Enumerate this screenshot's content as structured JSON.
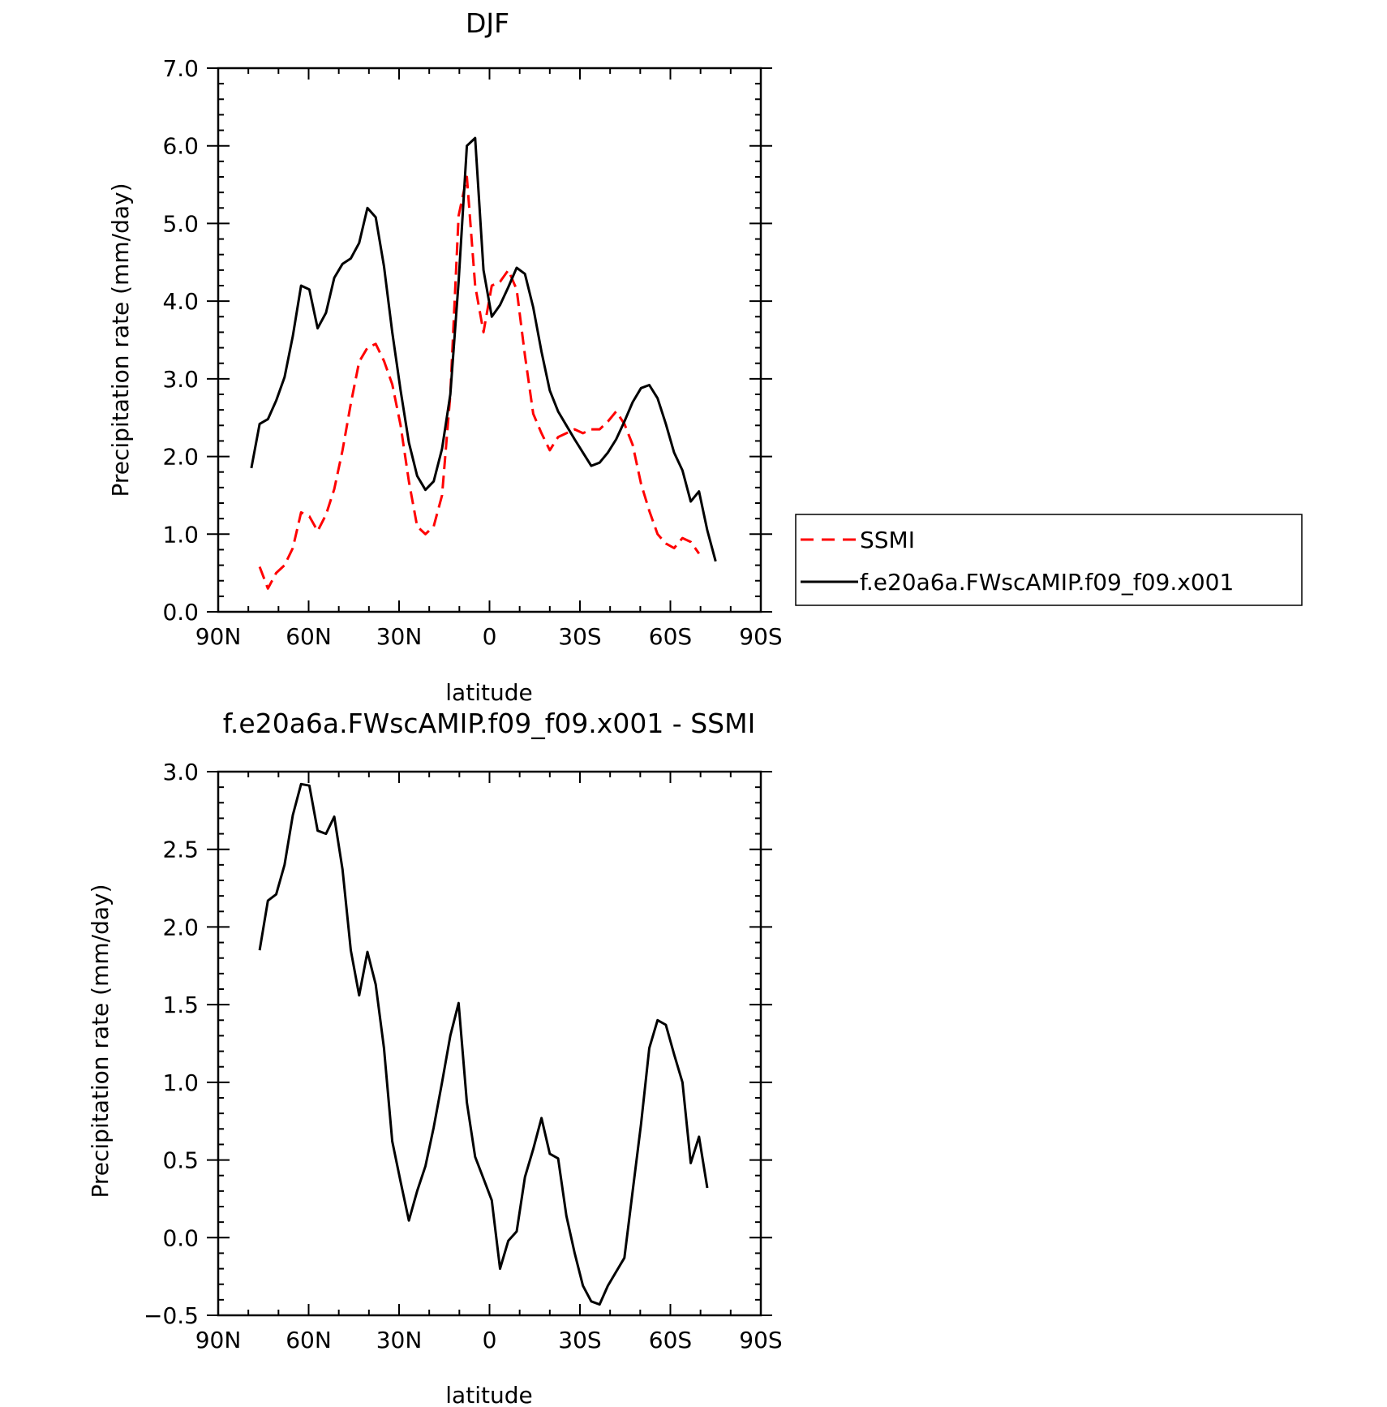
{
  "chart_data": [
    {
      "type": "line",
      "title": "DJF",
      "xlabel": "latitude",
      "ylabel": "Precipitation rate (mm/day)",
      "xlim": [
        90,
        -90
      ],
      "ylim": [
        0.0,
        7.0
      ],
      "xticks": [
        90,
        60,
        30,
        0,
        -30,
        -60,
        -90
      ],
      "xtick_labels": [
        "90N",
        "60N",
        "30N",
        "0",
        "30S",
        "60S",
        "90S"
      ],
      "yticks": [
        0,
        1,
        2,
        3,
        4,
        5,
        6,
        7
      ],
      "ytick_labels": [
        "0.0",
        "1.0",
        "2.0",
        "3.0",
        "4.0",
        "5.0",
        "6.0",
        "7.0"
      ],
      "grid": false,
      "legend": "right",
      "series": [
        {
          "name": "SSMI",
          "color": "#ff0000",
          "dash": "dashed",
          "x": [
            76.25,
            73.5,
            70.75,
            68.0,
            65.25,
            62.5,
            59.75,
            57.0,
            54.25,
            51.5,
            48.75,
            46.0,
            43.25,
            40.5,
            37.75,
            35.0,
            32.25,
            29.5,
            26.75,
            24.0,
            21.25,
            18.5,
            15.75,
            13.0,
            10.25,
            7.5,
            4.75,
            2.0,
            -0.75,
            -3.5,
            -6.25,
            -9.0,
            -11.75,
            -14.5,
            -17.25,
            -20.0,
            -22.75,
            -25.5,
            -28.25,
            -31.0,
            -33.75,
            -36.5,
            -39.25,
            -42.0,
            -44.75,
            -47.5,
            -50.25,
            -53.0,
            -55.75,
            -58.5,
            -61.25,
            -64.0,
            -66.75,
            -69.5,
            -72.25,
            -75.0
          ],
          "y": [
            0.58,
            0.3,
            0.5,
            0.6,
            0.82,
            1.28,
            1.23,
            1.04,
            1.25,
            1.58,
            2.08,
            2.68,
            3.22,
            3.4,
            3.45,
            3.23,
            2.93,
            2.4,
            1.68,
            1.1,
            1.0,
            1.1,
            1.5,
            2.8,
            5.1,
            5.6,
            4.2,
            3.6,
            4.2,
            4.25,
            4.4,
            4.15,
            3.3,
            2.55,
            2.3,
            2.08,
            2.25,
            2.3,
            2.35,
            2.3,
            2.35,
            2.35,
            2.45,
            2.58,
            2.42,
            2.15,
            1.65,
            1.3,
            1.0,
            0.88,
            0.82,
            0.95,
            0.9,
            0.75,
            null,
            null
          ]
        },
        {
          "name": "f.e20a6a.FWscAMIP.f09_f09.x001",
          "color": "#000000",
          "dash": "solid",
          "x": [
            79.0,
            76.25,
            73.5,
            70.75,
            68.0,
            65.25,
            62.5,
            59.75,
            57.0,
            54.25,
            51.5,
            48.75,
            46.0,
            43.25,
            40.5,
            37.75,
            35.0,
            32.25,
            29.5,
            26.75,
            24.0,
            21.25,
            18.5,
            15.75,
            13.0,
            10.25,
            7.5,
            4.75,
            2.0,
            -0.75,
            -3.5,
            -6.25,
            -9.0,
            -11.75,
            -14.5,
            -17.25,
            -20.0,
            -22.75,
            -25.5,
            -28.25,
            -31.0,
            -33.75,
            -36.5,
            -39.25,
            -42.0,
            -44.75,
            -47.5,
            -50.25,
            -53.0,
            -55.75,
            -58.5,
            -61.25,
            -64.0,
            -66.75,
            -69.5,
            -72.25,
            -75.0,
            -77.75
          ],
          "y": [
            1.85,
            2.42,
            2.48,
            2.72,
            3.02,
            3.55,
            4.2,
            4.15,
            3.65,
            3.85,
            4.3,
            4.48,
            4.55,
            4.75,
            5.2,
            5.08,
            4.45,
            3.6,
            2.85,
            2.18,
            1.75,
            1.57,
            1.68,
            2.1,
            2.8,
            4.25,
            6.0,
            6.1,
            4.4,
            3.8,
            3.95,
            4.18,
            4.43,
            4.35,
            3.92,
            3.35,
            2.85,
            2.58,
            2.4,
            2.22,
            2.05,
            1.88,
            1.92,
            2.05,
            2.22,
            2.45,
            2.7,
            2.88,
            2.92,
            2.75,
            2.42,
            2.05,
            1.82,
            1.42,
            1.55,
            1.05,
            0.65,
            null
          ]
        }
      ]
    },
    {
      "type": "line",
      "title": "f.e20a6a.FWscAMIP.f09_f09.x001 - SSMI",
      "xlabel": "latitude",
      "ylabel": "Precipitation rate (mm/day)",
      "xlim": [
        90,
        -90
      ],
      "ylim": [
        -0.5,
        3.0
      ],
      "xticks": [
        90,
        60,
        30,
        0,
        -30,
        -60,
        -90
      ],
      "xtick_labels": [
        "90N",
        "60N",
        "30N",
        "0",
        "30S",
        "60S",
        "90S"
      ],
      "yticks": [
        -0.5,
        0.0,
        0.5,
        1.0,
        1.5,
        2.0,
        2.5,
        3.0
      ],
      "ytick_labels": [
        "−0.5",
        "0.0",
        "0.5",
        "1.0",
        "1.5",
        "2.0",
        "2.5",
        "3.0"
      ],
      "grid": false,
      "series": [
        {
          "color": "#000000",
          "dash": "solid",
          "x": [
            76.25,
            73.5,
            70.75,
            68.0,
            65.25,
            62.5,
            59.75,
            57.0,
            54.25,
            51.5,
            48.75,
            46.0,
            43.25,
            40.5,
            37.75,
            35.0,
            32.25,
            29.5,
            26.75,
            24.0,
            21.25,
            18.5,
            15.75,
            13.0,
            10.25,
            7.5,
            4.75,
            2.0,
            -0.75,
            -3.5,
            -6.25,
            -9.0,
            -11.75,
            -14.5,
            -17.25,
            -20.0,
            -22.75,
            -25.5,
            -28.25,
            -31.0,
            -33.75,
            -36.5,
            -39.25,
            -42.0,
            -44.75,
            -47.5,
            -50.25,
            -53.0,
            -55.75,
            -58.5,
            -61.25,
            -64.0,
            -66.75,
            -69.5,
            -72.25,
            -75.0
          ],
          "y": [
            1.85,
            2.17,
            2.21,
            2.4,
            2.72,
            2.92,
            2.91,
            2.62,
            2.6,
            2.71,
            2.37,
            1.85,
            1.56,
            1.84,
            1.63,
            1.22,
            0.62,
            0.36,
            0.11,
            0.3,
            0.46,
            0.71,
            1.0,
            1.3,
            1.51,
            0.87,
            0.52,
            0.38,
            0.24,
            -0.2,
            -0.02,
            0.04,
            0.39,
            0.57,
            0.77,
            0.54,
            0.51,
            0.14,
            -0.1,
            -0.31,
            -0.41,
            -0.43,
            -0.31,
            -0.22,
            -0.13,
            0.3,
            0.73,
            1.22,
            1.4,
            1.37,
            1.18,
            1.0,
            0.48,
            0.65,
            0.32,
            null
          ]
        }
      ]
    }
  ]
}
